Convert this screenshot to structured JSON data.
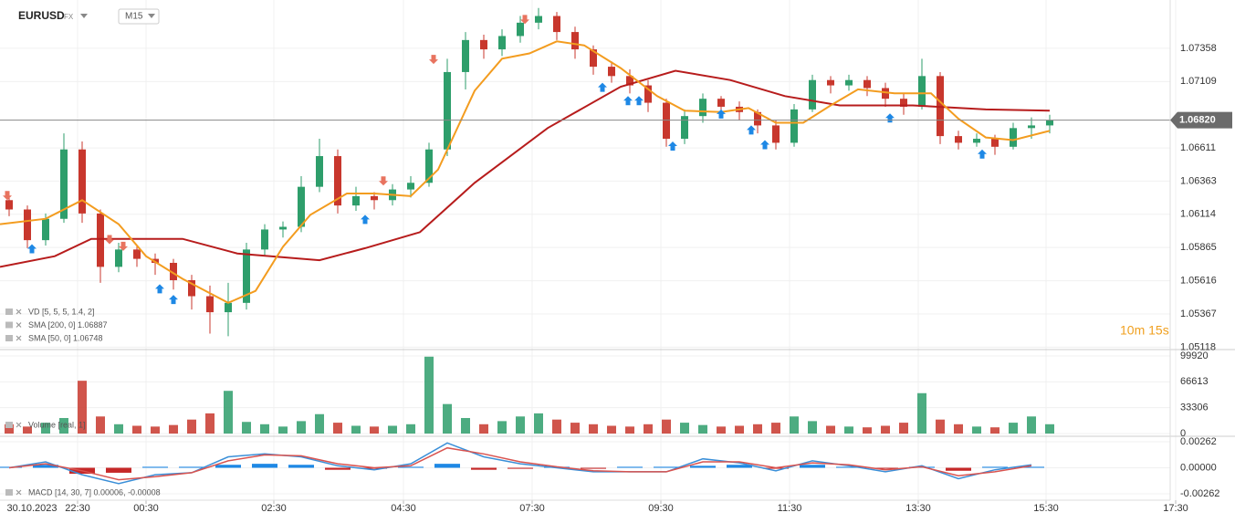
{
  "header": {
    "symbol": "EURUSD",
    "market": "FX",
    "timeframe": "M15"
  },
  "countdown": "10m 15s",
  "chart_data": [
    {
      "type": "candlestick",
      "up_color": "#2e9e6b",
      "down_color": "#c8372d",
      "xlim": [
        0,
        135.3
      ],
      "ylim": [
        1.051,
        1.0772
      ],
      "xticks": [
        {
          "value": 3.5,
          "label": "30.10.2023"
        },
        {
          "value": 8.5,
          "label": "22:30"
        },
        {
          "value": 16,
          "label": "00:30"
        },
        {
          "value": 30,
          "label": "02:30"
        },
        {
          "value": 44.2,
          "label": "04:30"
        },
        {
          "value": 58.3,
          "label": "07:30"
        },
        {
          "value": 72.4,
          "label": "09:30"
        },
        {
          "value": 86.5,
          "label": "11:30"
        },
        {
          "value": 100.6,
          "label": "13:30"
        },
        {
          "value": 114.6,
          "label": "15:30"
        },
        {
          "value": 128.8,
          "label": "17:30"
        }
      ],
      "yticks": [
        1.07358,
        1.07109,
        1.06611,
        1.06363,
        1.06114,
        1.05865,
        1.05616,
        1.05367,
        1.05118
      ],
      "x": [
        1,
        3,
        5,
        7,
        9,
        11,
        13,
        15,
        17,
        19,
        21,
        23,
        25,
        27,
        29,
        31,
        33,
        35,
        37,
        39,
        41,
        43,
        45,
        47,
        49,
        51,
        53,
        55,
        57,
        59,
        61,
        63,
        65,
        67,
        69,
        71,
        73,
        75,
        77,
        79,
        81,
        83,
        85,
        87,
        89,
        91,
        93,
        95,
        97,
        99,
        101,
        103,
        105,
        107,
        109,
        111,
        113,
        115
      ],
      "open": [
        1.0622,
        1.0615,
        1.0592,
        1.0608,
        1.066,
        1.0612,
        1.0572,
        1.0585,
        1.0578,
        1.0575,
        1.0562,
        1.055,
        1.0538,
        1.0545,
        1.0585,
        1.06,
        1.0602,
        1.0632,
        1.0655,
        1.0618,
        1.0625,
        1.0622,
        1.063,
        1.0635,
        1.066,
        1.0718,
        1.0742,
        1.0735,
        1.0745,
        1.0755,
        1.076,
        1.0748,
        1.0735,
        1.0722,
        1.0715,
        1.0708,
        1.0695,
        1.0668,
        1.0685,
        1.0698,
        1.0692,
        1.0688,
        1.0678,
        1.0665,
        1.069,
        1.0712,
        1.0708,
        1.0712,
        1.0706,
        1.0698,
        1.0692,
        1.0715,
        1.067,
        1.0665,
        1.0668,
        1.0662,
        1.0676,
        1.0678
      ],
      "high": [
        1.0627,
        1.0618,
        1.0612,
        1.0672,
        1.0666,
        1.0615,
        1.059,
        1.0588,
        1.0582,
        1.0578,
        1.0566,
        1.0558,
        1.056,
        1.059,
        1.0604,
        1.0606,
        1.064,
        1.0668,
        1.066,
        1.0632,
        1.0628,
        1.0634,
        1.064,
        1.0665,
        1.0728,
        1.0748,
        1.0746,
        1.075,
        1.076,
        1.0766,
        1.0763,
        1.0752,
        1.0738,
        1.0726,
        1.072,
        1.0712,
        1.0698,
        1.069,
        1.0702,
        1.07,
        1.0696,
        1.069,
        1.0682,
        1.0694,
        1.0716,
        1.0715,
        1.0716,
        1.0715,
        1.071,
        1.0702,
        1.0728,
        1.0718,
        1.0674,
        1.0672,
        1.0671,
        1.068,
        1.0684,
        1.0686
      ],
      "low": [
        1.061,
        1.0586,
        1.0588,
        1.0605,
        1.0605,
        1.056,
        1.0568,
        1.0572,
        1.0566,
        1.0555,
        1.054,
        1.0522,
        1.052,
        1.054,
        1.058,
        1.0594,
        1.0598,
        1.0628,
        1.0612,
        1.0614,
        1.0615,
        1.0618,
        1.0624,
        1.0632,
        1.0655,
        1.0705,
        1.0728,
        1.073,
        1.074,
        1.075,
        1.0742,
        1.0728,
        1.0716,
        1.071,
        1.0702,
        1.0688,
        1.0662,
        1.0664,
        1.068,
        1.0688,
        1.0682,
        1.0672,
        1.066,
        1.0662,
        1.0688,
        1.0702,
        1.0704,
        1.07,
        1.0692,
        1.0686,
        1.069,
        1.0664,
        1.066,
        1.0662,
        1.0656,
        1.066,
        1.0668,
        1.0672
      ],
      "close": [
        1.0615,
        1.0592,
        1.0608,
        1.066,
        1.0612,
        1.0572,
        1.0585,
        1.0578,
        1.0575,
        1.0562,
        1.055,
        1.0538,
        1.0545,
        1.0585,
        1.06,
        1.0602,
        1.0632,
        1.0655,
        1.0618,
        1.0625,
        1.0622,
        1.063,
        1.0635,
        1.066,
        1.0718,
        1.0742,
        1.0735,
        1.0745,
        1.0755,
        1.076,
        1.0748,
        1.0735,
        1.0722,
        1.0715,
        1.0708,
        1.0695,
        1.0668,
        1.0685,
        1.0698,
        1.0692,
        1.0688,
        1.0678,
        1.0665,
        1.069,
        1.0712,
        1.0708,
        1.0712,
        1.0706,
        1.0698,
        1.0692,
        1.0715,
        1.067,
        1.0665,
        1.0668,
        1.0662,
        1.0676,
        1.0678,
        1.0682
      ],
      "series": [
        {
          "color": "#b71c1c",
          "x": [
            0,
            6,
            10,
            20,
            26,
            35,
            40,
            46,
            52,
            60,
            68,
            74,
            80,
            86,
            92,
            100,
            108,
            115
          ],
          "values": [
            1.0572,
            1.058,
            1.0593,
            1.0593,
            1.0582,
            1.0577,
            1.0586,
            1.0598,
            1.0635,
            1.0676,
            1.0707,
            1.0719,
            1.0712,
            1.07,
            1.0693,
            1.0693,
            1.069,
            1.0689
          ]
        },
        {
          "color": "#f39c1f",
          "x": [
            0,
            5,
            9,
            13,
            16,
            20,
            25,
            28,
            31,
            34,
            38,
            41,
            45,
            48,
            52,
            55,
            58,
            61,
            64,
            68,
            72,
            75,
            79,
            82,
            85,
            88,
            91,
            94,
            98,
            102,
            105,
            108,
            111,
            115
          ],
          "values": [
            1.0604,
            1.0608,
            1.0622,
            1.0604,
            1.058,
            1.0563,
            1.0545,
            1.0554,
            1.0587,
            1.0611,
            1.0627,
            1.0627,
            1.0625,
            1.0645,
            1.0704,
            1.0728,
            1.0732,
            1.0741,
            1.0738,
            1.0721,
            1.07,
            1.0689,
            1.0688,
            1.0691,
            1.068,
            1.068,
            1.0693,
            1.0705,
            1.0702,
            1.0702,
            1.0683,
            1.0669,
            1.0667,
            1.0674
          ]
        }
      ],
      "buy_signals": {
        "color": "#1e88e5",
        "x": [
          3.5,
          17.5,
          19,
          40,
          66,
          68.8,
          70,
          73.7,
          79,
          82.3,
          83.8,
          97.5,
          107.6
        ],
        "values": [
          1.0589,
          1.0559,
          1.0551,
          1.0611,
          1.071,
          1.07,
          1.07,
          1.0666,
          1.069,
          1.0678,
          1.0667,
          1.0687,
          1.066
        ]
      },
      "sell_signals": {
        "color": "#e8735f",
        "x": [
          0.8,
          12,
          13.5,
          42,
          47.5,
          57.5
        ],
        "values": [
          1.0622,
          1.0589,
          1.0584,
          1.0633,
          1.0724,
          1.0754
        ]
      },
      "last_price": {
        "value": 1.0682,
        "label": "1.06820"
      },
      "indicators": [
        "VD [5, 5, 5, 1.4, 2]",
        "SMA [200, 0] 1.06887",
        "SMA [50, 0] 1.06748"
      ]
    },
    {
      "type": "bar",
      "label": "Volume [real, 1]",
      "ylim": [
        0,
        99920
      ],
      "yticks": [
        99920,
        66613,
        33306,
        0
      ],
      "values": [
        12000,
        9000,
        14000,
        20000,
        68000,
        22000,
        12000,
        10000,
        9000,
        11000,
        18000,
        26000,
        55000,
        15000,
        12000,
        9000,
        16000,
        25000,
        14000,
        10000,
        9000,
        10000,
        12000,
        99000,
        38000,
        20000,
        12000,
        16000,
        22000,
        26000,
        18000,
        14000,
        12000,
        10000,
        9000,
        12000,
        18000,
        14000,
        11000,
        9000,
        10000,
        12000,
        14000,
        22000,
        16000,
        10000,
        9000,
        8000,
        10000,
        14000,
        52000,
        18000,
        12000,
        9000,
        8000,
        14000,
        22000,
        12000
      ]
    },
    {
      "type": "macd",
      "label": "MACD [14, 30, 7] 0.00006, -0.00008",
      "ylim": [
        -0.00262,
        0.00262
      ],
      "yticks": [
        0.00262,
        {
          "value": 0,
          "label": "0.00000"
        },
        -0.00262
      ],
      "positive_color": "#1e88e5",
      "negative_color": "#c62828",
      "x": [
        1,
        5,
        9,
        13,
        17,
        21,
        25,
        29,
        33,
        37,
        41,
        45,
        49,
        53,
        57,
        61,
        65,
        69,
        73,
        77,
        81,
        85,
        89,
        93,
        97,
        101,
        105,
        109,
        113
      ],
      "series": [
        {
          "color": "#3a8fd8",
          "values": [
            0,
            0.0006,
            -0.0007,
            -0.0016,
            -0.0007,
            -0.0005,
            0.0011,
            0.0014,
            0.0011,
            0.0002,
            -0.0002,
            0.0004,
            0.0025,
            0.0011,
            0.0004,
            0,
            -0.0004,
            -0.0004,
            -0.0004,
            0.0009,
            0.0005,
            -0.0003,
            0.0007,
            0.0002,
            -0.0004,
            0.0002,
            -0.0011,
            -0.0002,
            0.0003
          ]
        },
        {
          "color": "#d9534f",
          "values": [
            0,
            0.0004,
            -0.0003,
            -0.0012,
            -0.0009,
            -0.0005,
            0.0007,
            0.0013,
            0.0012,
            0.0004,
            0,
            0.0002,
            0.002,
            0.0014,
            0.0006,
            0.0001,
            -0.0003,
            -0.0004,
            -0.0004,
            0.0006,
            0.0006,
            0,
            0.0005,
            0.0003,
            -0.0002,
            0.0001,
            -0.0008,
            -0.0004,
            0.0002
          ]
        }
      ],
      "histogram": [
        0.0001,
        0.0003,
        -0.0006,
        -0.0005,
        0.0001,
        0.0001,
        0.0003,
        0.0004,
        0.0003,
        -0.0002,
        -0.0001,
        0.0001,
        0.0004,
        -0.0002,
        -0.0001,
        0.0001,
        -0.0001,
        0.0001,
        0.0001,
        0.0002,
        0.0003,
        -0.0001,
        0.0003,
        0.0001,
        -0.0001,
        0.0001,
        -0.0003,
        0.0001,
        0.0001
      ]
    }
  ]
}
